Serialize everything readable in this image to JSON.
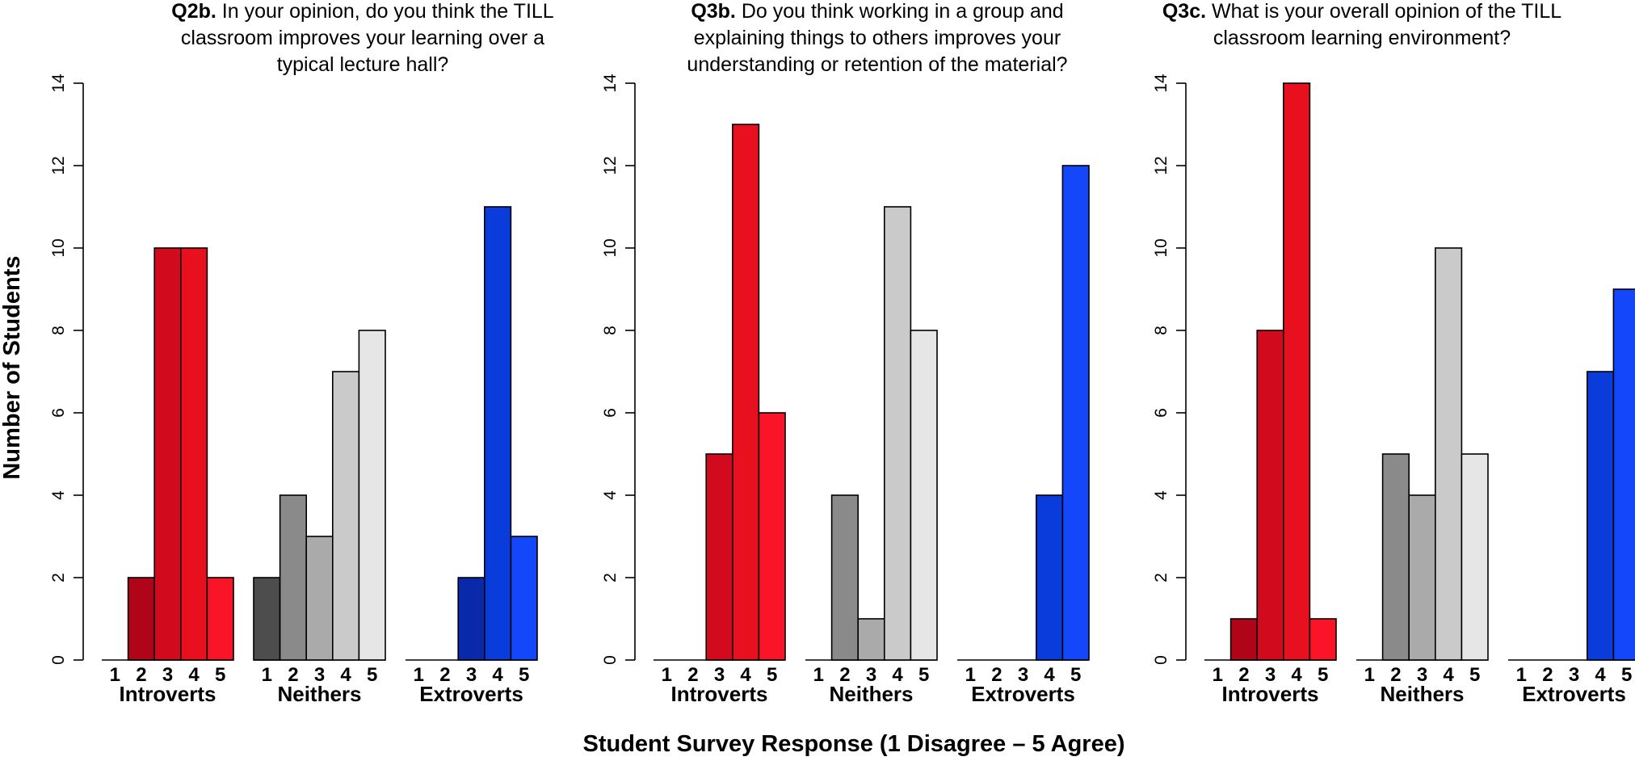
{
  "ylabel": "Number of Students",
  "xlabel": "Student Survey Response (1 Disagree – 5 Agree)",
  "colors": {
    "Introverts": [
      "#8b0010",
      "#b00518",
      "#d20a1e",
      "#e8101f",
      "#fa1428"
    ],
    "Neithers": [
      "#4d4d4d",
      "#8a8a8a",
      "#aaaaaa",
      "#cacaca",
      "#e6e6e6"
    ],
    "Extroverts": [
      "#001e6e",
      "#0019a0",
      "#0a28aa",
      "#0a3cdc",
      "#1446fa"
    ]
  },
  "chart_data": [
    {
      "type": "bar",
      "title_prefix": "Q2b.",
      "title_lines": [
        "In your opinion, do you think the TILL",
        "classroom improves your learning over a",
        "typical lecture hall?"
      ],
      "ylim": [
        0,
        14
      ],
      "yticks": [
        "0",
        "2",
        "4",
        "6",
        "8",
        "10",
        "12",
        "14"
      ],
      "responses": [
        "1",
        "2",
        "3",
        "4",
        "5"
      ],
      "series": [
        {
          "name": "Introverts",
          "values": [
            0,
            2,
            10,
            10,
            2
          ]
        },
        {
          "name": "Neithers",
          "values": [
            2,
            4,
            3,
            7,
            8
          ]
        },
        {
          "name": "Extroverts",
          "values": [
            0,
            0,
            2,
            11,
            3
          ]
        }
      ]
    },
    {
      "type": "bar",
      "title_prefix": "Q3b.",
      "title_lines": [
        "Do you think working in a group and",
        "explaining things to others improves your",
        "understanding or retention of the material?"
      ],
      "ylim": [
        0,
        14
      ],
      "yticks": [
        "0",
        "2",
        "4",
        "6",
        "8",
        "10",
        "12",
        "14"
      ],
      "responses": [
        "1",
        "2",
        "3",
        "4",
        "5"
      ],
      "series": [
        {
          "name": "Introverts",
          "values": [
            0,
            0,
            5,
            13,
            6
          ]
        },
        {
          "name": "Neithers",
          "values": [
            0,
            4,
            1,
            11,
            8
          ]
        },
        {
          "name": "Extroverts",
          "values": [
            0,
            0,
            0,
            4,
            12
          ]
        }
      ]
    },
    {
      "type": "bar",
      "title_prefix": "Q3c.",
      "title_lines": [
        "What is your overall opinion of the TILL",
        "classroom learning environment?"
      ],
      "ylim": [
        0,
        14
      ],
      "yticks": [
        "0",
        "2",
        "4",
        "6",
        "8",
        "10",
        "12",
        "14"
      ],
      "responses": [
        "1",
        "2",
        "3",
        "4",
        "5"
      ],
      "series": [
        {
          "name": "Introverts",
          "values": [
            0,
            1,
            8,
            14,
            1
          ]
        },
        {
          "name": "Neithers",
          "values": [
            0,
            5,
            4,
            10,
            5
          ]
        },
        {
          "name": "Extroverts",
          "values": [
            0,
            0,
            0,
            7,
            9
          ]
        }
      ]
    }
  ]
}
